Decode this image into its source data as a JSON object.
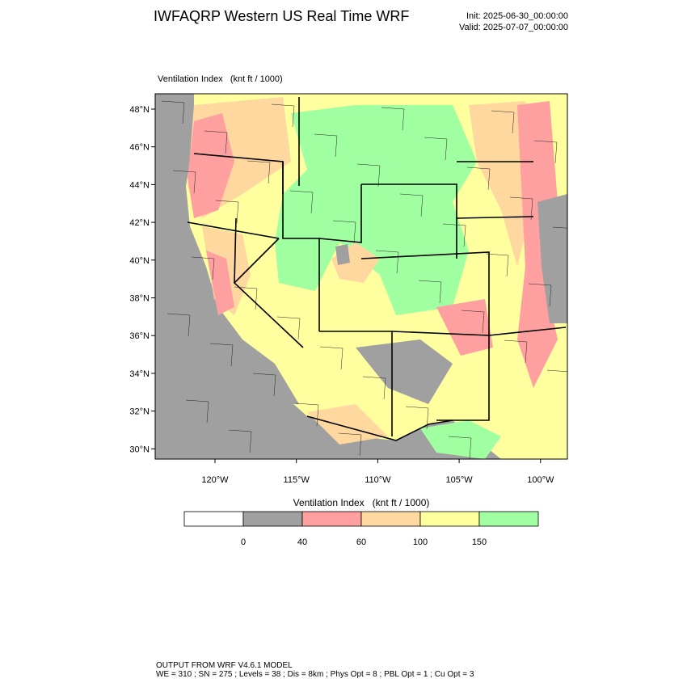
{
  "header": {
    "title": "IWFAQRP Western US Real Time WRF",
    "init": "Init: 2025-06-30_00:00:00",
    "valid": "Valid: 2025-07-07_00:00:00"
  },
  "map": {
    "field_label": "Ventilation Index   (knt ft / 1000)",
    "lat_labels": [
      "48°N",
      "46°N",
      "44°N",
      "42°N",
      "40°N",
      "38°N",
      "36°N",
      "34°N",
      "32°N",
      "30°N"
    ],
    "lon_labels": [
      "120°W",
      "115°W",
      "110°W",
      "105°W",
      "100°W"
    ]
  },
  "colorbar": {
    "title": "Ventilation Index   (knt ft / 1000)",
    "levels": [
      0,
      40,
      60,
      100,
      150
    ],
    "colors": [
      "#ffffff",
      "#a0a0a0",
      "#ffa0a0",
      "#ffd8a0",
      "#ffffa0",
      "#a0ffa0"
    ]
  },
  "footer": {
    "line1": "OUTPUT FROM WRF V4.6.1 MODEL",
    "line2": "WE = 310 ; SN = 275 ; Levels = 38 ; Dis = 8km ; Phys Opt = 8 ; PBL Opt = 1 ; Cu Opt = 3"
  }
}
